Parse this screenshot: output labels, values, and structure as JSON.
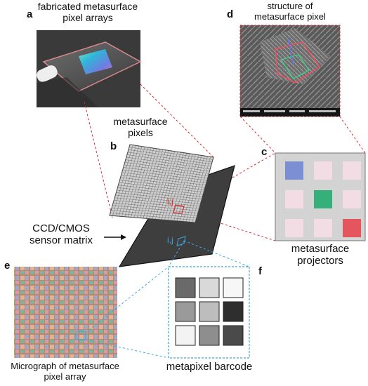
{
  "panels": {
    "a": {
      "letter": "a",
      "caption_line1": "fabricated metasurface",
      "caption_line2": "pixel arrays"
    },
    "b": {
      "letter": "b",
      "caption_line1": "metasurface",
      "caption_line2": "pixels",
      "pixel_label": "i,j",
      "sensor_pixel_label": "i,j"
    },
    "c": {
      "letter": "c",
      "caption_line1": "metasurface",
      "caption_line2": "projectors"
    },
    "d": {
      "letter": "d",
      "caption_line1": "structure of",
      "caption_line2": "metasurface pixel"
    },
    "e": {
      "letter": "e",
      "caption_line1": "Micrograph of metasurface",
      "caption_line2": "pixel array"
    },
    "f": {
      "letter": "f",
      "caption": "metapixel barcode"
    }
  },
  "sensor": {
    "line1": "CCD/CMOS",
    "line2": "sensor matrix"
  },
  "projector_grid": {
    "cells": [
      "#7d8fd3",
      "#f1dde3",
      "#f1dde3",
      "#f1dde3",
      "#36b07a",
      "#f1dde3",
      "#f1dde3",
      "#f1dde3",
      "#e4555e"
    ]
  },
  "barcode_grid": {
    "cells": [
      "#6a6a6a",
      "#d9d9d9",
      "#f7f7f7",
      "#9a9a9a",
      "#bdbdbd",
      "#2e2e2e",
      "#f3f3f3",
      "#8e8e8e",
      "#4a4a4a"
    ]
  },
  "colors": {
    "red_dashed": "#d9262b",
    "blue_dashed": "#3aa8e0"
  }
}
